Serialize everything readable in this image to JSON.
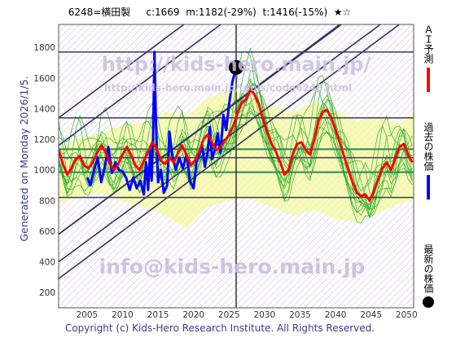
{
  "header": {
    "code_name": "6248=横田製",
    "current": "c:1669",
    "min": "m:1182(-29%)",
    "target": "t:1416(-15%)",
    "stars": "★☆"
  },
  "side_text": "Generated on Monday 2026/1/5.",
  "copyright": "Copyright (c) Kids-Hero Research Institute. All Rights Reserved.",
  "watermarks": {
    "top_url": "http://kids-hero.main.jp/",
    "mid_url": "http://kids-hero.main.jp/tools/code6248.html",
    "email": "info@kids-hero.main.jp"
  },
  "legend": {
    "ai_forecast": "ＡＩ予測",
    "past_price": "過去の株価",
    "latest_price": "最新の株価"
  },
  "colors": {
    "forecast": "#ff0000",
    "past": "#0000ff",
    "band_green": "#22aa22",
    "band_fill": "#f4f8a0",
    "trend": "#333366",
    "hline": "#3a3a6a",
    "hline_green": "#2a8a4a",
    "axis_text": "#333333"
  },
  "chart_data": {
    "type": "line",
    "xlim": [
      2001,
      2051
    ],
    "ylim": [
      100,
      1950
    ],
    "x_ticks": [
      2005,
      2010,
      2015,
      2020,
      2025,
      2030,
      2035,
      2040,
      2045,
      2050
    ],
    "y_ticks": [
      200,
      400,
      600,
      800,
      1000,
      1200,
      1400,
      1600,
      1800
    ],
    "current_year": 2026,
    "latest_point": {
      "x": 2026,
      "y": 1669
    },
    "horizontal_levels": [
      {
        "y": 1770,
        "style": "dark"
      },
      {
        "y": 1340,
        "style": "dark"
      },
      {
        "y": 1135,
        "style": "green"
      },
      {
        "y": 1080,
        "style": "dark"
      },
      {
        "y": 985,
        "style": "green"
      },
      {
        "y": 820,
        "style": "dark"
      }
    ],
    "trend_lines": [
      {
        "start": [
          2001,
          580
        ],
        "end": [
          2051,
          2300
        ]
      },
      {
        "start": [
          2001,
          580
        ],
        "end": [
          2051,
          2310
        ]
      },
      {
        "start": [
          2001,
          1160
        ],
        "end": [
          2051,
          2890
        ]
      },
      {
        "start": [
          2001,
          400
        ],
        "end": [
          2051,
          2110
        ]
      },
      {
        "start": [
          2001,
          1340
        ],
        "end": [
          2051,
          3070
        ]
      },
      {
        "start": [
          2001,
          290
        ],
        "end": [
          2051,
          2020
        ]
      },
      {
        "start": [
          2006,
          1950
        ],
        "end": [
          2051,
          3400
        ]
      }
    ],
    "series": [
      {
        "name": "past",
        "points": [
          [
            2005,
            950
          ],
          [
            2005.5,
            900
          ],
          [
            2006,
            1000
          ],
          [
            2006.5,
            1080
          ],
          [
            2007,
            920
          ],
          [
            2007.5,
            1020
          ],
          [
            2008,
            1150
          ],
          [
            2008.5,
            980
          ],
          [
            2009,
            1050
          ],
          [
            2009.5,
            1000
          ],
          [
            2010,
            990
          ],
          [
            2010.5,
            950
          ],
          [
            2011,
            870
          ],
          [
            2011.5,
            950
          ],
          [
            2012,
            880
          ],
          [
            2012.5,
            930
          ],
          [
            2013,
            840
          ],
          [
            2013.3,
            1050
          ],
          [
            2013.6,
            870
          ],
          [
            2013.9,
            1130
          ],
          [
            2014.1,
            930
          ],
          [
            2014.3,
            1210
          ],
          [
            2014.5,
            1770
          ],
          [
            2014.7,
            1310
          ],
          [
            2015,
            920
          ],
          [
            2015.4,
            1000
          ],
          [
            2015.8,
            850
          ],
          [
            2016.3,
            900
          ],
          [
            2016.6,
            1250
          ],
          [
            2017,
            1100
          ],
          [
            2017.5,
            1000
          ],
          [
            2018,
            1080
          ],
          [
            2018.5,
            1010
          ],
          [
            2019,
            1100
          ],
          [
            2019.5,
            930
          ],
          [
            2020,
            880
          ],
          [
            2020.4,
            1050
          ],
          [
            2020.8,
            1100
          ],
          [
            2021.2,
            1160
          ],
          [
            2021.6,
            1020
          ],
          [
            2022,
            1120
          ],
          [
            2022.3,
            1280
          ],
          [
            2022.6,
            1070
          ],
          [
            2023,
            1130
          ],
          [
            2023.4,
            1240
          ],
          [
            2023.8,
            1110
          ],
          [
            2024.2,
            1360
          ],
          [
            2024.6,
            1260
          ],
          [
            2025,
            1430
          ],
          [
            2025.5,
            1580
          ],
          [
            2026,
            1669
          ]
        ]
      },
      {
        "name": "forecast",
        "points": [
          [
            2001,
            1130
          ],
          [
            2001.6,
            1040
          ],
          [
            2002.2,
            970
          ],
          [
            2002.8,
            1010
          ],
          [
            2003.4,
            1070
          ],
          [
            2004,
            1090
          ],
          [
            2004.6,
            1030
          ],
          [
            2005.2,
            1010
          ],
          [
            2005.8,
            1050
          ],
          [
            2006.4,
            1110
          ],
          [
            2007,
            1160
          ],
          [
            2007.6,
            1120
          ],
          [
            2008.2,
            1040
          ],
          [
            2008.8,
            1000
          ],
          [
            2009.4,
            1040
          ],
          [
            2010,
            1100
          ],
          [
            2010.6,
            1150
          ],
          [
            2011.2,
            1100
          ],
          [
            2011.8,
            1030
          ],
          [
            2012.4,
            1000
          ],
          [
            2013,
            1060
          ],
          [
            2013.6,
            1120
          ],
          [
            2014.2,
            1180
          ],
          [
            2014.8,
            1140
          ],
          [
            2015.4,
            1060
          ],
          [
            2016,
            1040
          ],
          [
            2016.6,
            1080
          ],
          [
            2017.2,
            1050
          ],
          [
            2017.8,
            1110
          ],
          [
            2018.4,
            1160
          ],
          [
            2019,
            1100
          ],
          [
            2019.6,
            1030
          ],
          [
            2020.2,
            1060
          ],
          [
            2020.8,
            1120
          ],
          [
            2021.4,
            1200
          ],
          [
            2022,
            1230
          ],
          [
            2022.6,
            1180
          ],
          [
            2023.2,
            1130
          ],
          [
            2023.8,
            1150
          ],
          [
            2024.4,
            1190
          ],
          [
            2025,
            1230
          ],
          [
            2025.6,
            1290
          ],
          [
            2026.2,
            1370
          ],
          [
            2026.8,
            1440
          ],
          [
            2027.4,
            1460
          ],
          [
            2028,
            1530
          ],
          [
            2028.6,
            1490
          ],
          [
            2029.2,
            1430
          ],
          [
            2029.8,
            1330
          ],
          [
            2030.4,
            1240
          ],
          [
            2031,
            1170
          ],
          [
            2031.6,
            1120
          ],
          [
            2032.2,
            1050
          ],
          [
            2032.8,
            970
          ],
          [
            2033.4,
            1000
          ],
          [
            2034,
            1110
          ],
          [
            2034.6,
            1170
          ],
          [
            2035.2,
            1180
          ],
          [
            2035.8,
            1130
          ],
          [
            2036.4,
            1100
          ],
          [
            2037,
            1200
          ],
          [
            2037.6,
            1320
          ],
          [
            2038.2,
            1380
          ],
          [
            2038.8,
            1390
          ],
          [
            2039.4,
            1340
          ],
          [
            2040,
            1260
          ],
          [
            2040.6,
            1180
          ],
          [
            2041.2,
            1090
          ],
          [
            2041.8,
            1000
          ],
          [
            2042.4,
            920
          ],
          [
            2043,
            850
          ],
          [
            2043.6,
            830
          ],
          [
            2044.2,
            840
          ],
          [
            2044.8,
            800
          ],
          [
            2045.4,
            860
          ],
          [
            2046,
            940
          ],
          [
            2046.6,
            1010
          ],
          [
            2047.2,
            1050
          ],
          [
            2047.8,
            1000
          ],
          [
            2048.4,
            1070
          ],
          [
            2049,
            1150
          ],
          [
            2049.6,
            1170
          ],
          [
            2050.2,
            1100
          ],
          [
            2050.8,
            1050
          ]
        ]
      }
    ],
    "band": {
      "upper": [
        [
          2001,
          1140
        ],
        [
          2004,
          1210
        ],
        [
          2007,
          1240
        ],
        [
          2010,
          1290
        ],
        [
          2013,
          1310
        ],
        [
          2016,
          1380
        ],
        [
          2019,
          1350
        ],
        [
          2022,
          1470
        ],
        [
          2025,
          1520
        ],
        [
          2028,
          1480
        ],
        [
          2031,
          1420
        ],
        [
          2034,
          1380
        ],
        [
          2037,
          1440
        ],
        [
          2040,
          1390
        ],
        [
          2043,
          1320
        ],
        [
          2046,
          1350
        ],
        [
          2049,
          1300
        ],
        [
          2051,
          1380
        ]
      ],
      "lower": [
        [
          2001,
          780
        ],
        [
          2004,
          830
        ],
        [
          2007,
          850
        ],
        [
          2010,
          790
        ],
        [
          2013,
          760
        ],
        [
          2016,
          700
        ],
        [
          2019,
          620
        ],
        [
          2022,
          760
        ],
        [
          2025,
          800
        ],
        [
          2028,
          810
        ],
        [
          2031,
          760
        ],
        [
          2034,
          700
        ],
        [
          2037,
          740
        ],
        [
          2040,
          680
        ],
        [
          2043,
          660
        ],
        [
          2046,
          720
        ],
        [
          2049,
          780
        ],
        [
          2051,
          800
        ]
      ]
    }
  }
}
